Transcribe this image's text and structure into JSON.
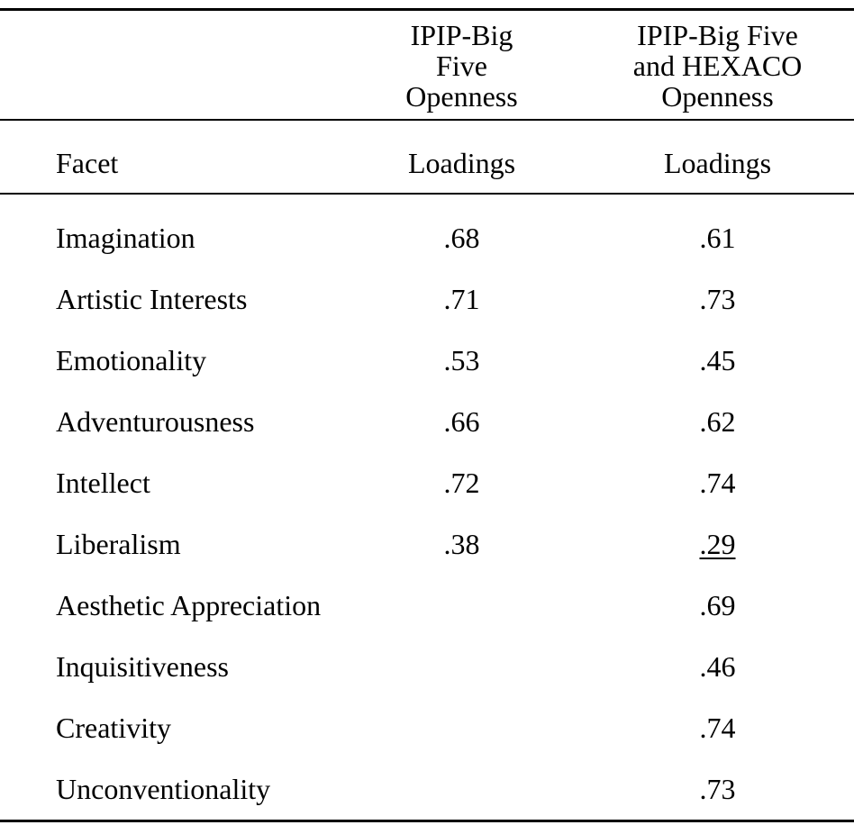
{
  "page": {
    "background": "#ffffff",
    "text_color": "#000000"
  },
  "table": {
    "header": {
      "facet_col": "",
      "col2": "IPIP-Big Five Openness",
      "col3": "IPIP-Big Five and HEXACO Openness"
    },
    "subheader": {
      "facet_col": "Facet",
      "col2": "Loadings",
      "col3": "Loadings"
    },
    "rows": [
      {
        "facet": "Imagination",
        "loading1": ".68",
        "loading2": ".61",
        "loading2_underline": false
      },
      {
        "facet": "Artistic Interests",
        "loading1": ".71",
        "loading2": ".73",
        "loading2_underline": false
      },
      {
        "facet": "Emotionality",
        "loading1": ".53",
        "loading2": ".45",
        "loading2_underline": false
      },
      {
        "facet": "Adventurousness",
        "loading1": ".66",
        "loading2": ".62",
        "loading2_underline": false
      },
      {
        "facet": "Intellect",
        "loading1": ".72",
        "loading2": ".74",
        "loading2_underline": false
      },
      {
        "facet": "Liberalism",
        "loading1": ".38",
        "loading2": ".29",
        "loading2_underline": true
      },
      {
        "facet": "Aesthetic Appreciation",
        "loading1": "",
        "loading2": ".69",
        "loading2_underline": false
      },
      {
        "facet": "Inquisitiveness",
        "loading1": "",
        "loading2": ".46",
        "loading2_underline": false
      },
      {
        "facet": "Creativity",
        "loading1": "",
        "loading2": ".74",
        "loading2_underline": false
      },
      {
        "facet": "Unconventionality",
        "loading1": "",
        "loading2": ".73",
        "loading2_underline": false
      }
    ]
  }
}
